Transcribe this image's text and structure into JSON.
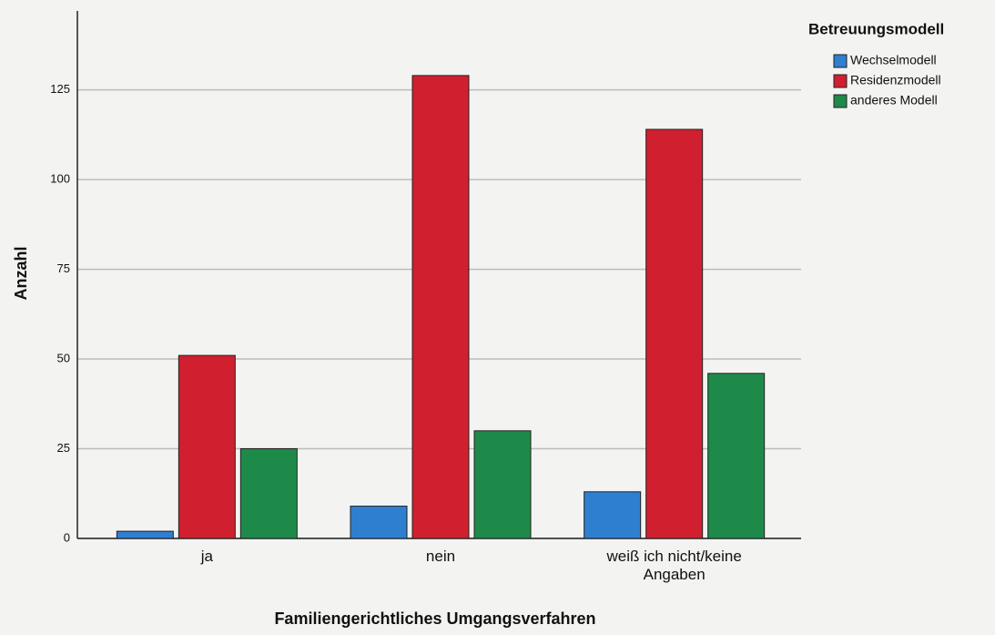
{
  "chart_data": {
    "type": "bar",
    "x_label": "Familiengerichtliches Umgangsverfahren",
    "y_label": "Anzahl",
    "legend_title": "Betreuungsmodell",
    "legend_position": "right",
    "categories": [
      "ja",
      "nein",
      "weiß ich nicht/keine Angaben"
    ],
    "series": [
      {
        "name": "Wechselmodell",
        "color": "#2f7fd0",
        "values": [
          2,
          9,
          13
        ]
      },
      {
        "name": "Residenzmodell",
        "color": "#d0202f",
        "values": [
          51,
          129,
          114
        ]
      },
      {
        "name": "anderes Modell",
        "color": "#1e8a4a",
        "values": [
          25,
          30,
          46
        ]
      }
    ],
    "ylim": [
      0,
      147
    ],
    "yticks": [
      0,
      25,
      50,
      75,
      100,
      125
    ],
    "grid": true
  }
}
